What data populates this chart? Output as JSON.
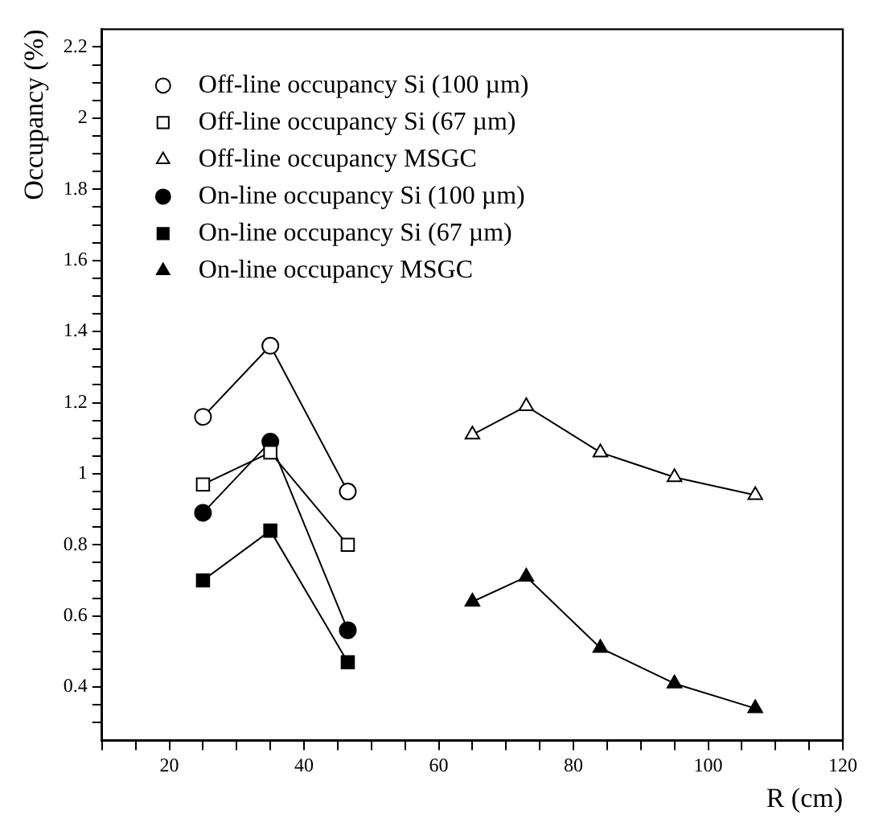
{
  "chart_data": {
    "type": "line",
    "xlabel": "R (cm)",
    "ylabel": "Occupancy (%)",
    "xlim": [
      10,
      120
    ],
    "xticks": [
      {
        "value": 10,
        "label": null
      },
      {
        "value": 15,
        "label": null
      },
      20,
      {
        "value": 25,
        "label": null
      },
      {
        "value": 30,
        "label": null
      },
      {
        "value": 35,
        "label": null
      },
      40,
      {
        "value": 45,
        "label": null
      },
      {
        "value": 50,
        "label": null
      },
      {
        "value": 55,
        "label": null
      },
      60,
      {
        "value": 65,
        "label": null
      },
      {
        "value": 70,
        "label": null
      },
      {
        "value": 75,
        "label": null
      },
      80,
      {
        "value": 85,
        "label": null
      },
      {
        "value": 90,
        "label": null
      },
      {
        "value": 95,
        "label": null
      },
      100,
      {
        "value": 105,
        "label": null
      },
      {
        "value": 110,
        "label": null
      },
      {
        "value": 115,
        "label": null
      },
      120
    ],
    "ylim": [
      0.25,
      2.25
    ],
    "yticks": [
      {
        "value": 0.3,
        "label": null
      },
      {
        "value": 0.35,
        "label": null
      },
      0.4,
      {
        "value": 0.45,
        "label": null
      },
      {
        "value": 0.5,
        "label": null
      },
      {
        "value": 0.55,
        "label": null
      },
      0.6,
      {
        "value": 0.65,
        "label": null
      },
      {
        "value": 0.7,
        "label": null
      },
      {
        "value": 0.75,
        "label": null
      },
      0.8,
      {
        "value": 0.85,
        "label": null
      },
      {
        "value": 0.9,
        "label": null
      },
      {
        "value": 0.95,
        "label": null
      },
      1,
      {
        "value": 1.05,
        "label": null
      },
      {
        "value": 1.1,
        "label": null
      },
      {
        "value": 1.15,
        "label": null
      },
      1.2,
      {
        "value": 1.25,
        "label": null
      },
      {
        "value": 1.3,
        "label": null
      },
      {
        "value": 1.35,
        "label": null
      },
      1.4,
      {
        "value": 1.45,
        "label": null
      },
      {
        "value": 1.5,
        "label": null
      },
      {
        "value": 1.55,
        "label": null
      },
      1.6,
      {
        "value": 1.65,
        "label": null
      },
      {
        "value": 1.7,
        "label": null
      },
      {
        "value": 1.75,
        "label": null
      },
      1.8,
      {
        "value": 1.85,
        "label": null
      },
      {
        "value": 1.9,
        "label": null
      },
      {
        "value": 1.95,
        "label": null
      },
      2,
      {
        "value": 2.05,
        "label": null
      },
      {
        "value": 2.1,
        "label": null
      },
      {
        "value": 2.15,
        "label": null
      },
      2.2
    ],
    "grid": false,
    "legend": "top left",
    "line_style": "solid",
    "series": [
      {
        "name": "Off-line occupancy Si (100 µm)",
        "color": "#000000",
        "marker": "circle",
        "x": [
          25,
          35,
          46.5
        ],
        "values": [
          1.16,
          1.36,
          0.95
        ]
      },
      {
        "name": "Off-line occupancy Si (67 µm)",
        "color": "#000000",
        "marker": "square",
        "x": [
          25,
          35,
          46.5
        ],
        "values": [
          0.97,
          1.06,
          0.8
        ]
      },
      {
        "name": "Off-line occupancy MSGC",
        "color": "#000000",
        "marker": "triangle",
        "x": [
          65,
          73,
          84,
          95,
          107
        ],
        "values": [
          1.11,
          1.19,
          1.06,
          0.99,
          0.94
        ]
      },
      {
        "name": "On-line occupancy Si (100 µm)",
        "color": "#000000",
        "marker": "circle",
        "x": [
          25,
          35,
          46.5
        ],
        "values": [
          0.89,
          1.09,
          0.56
        ]
      },
      {
        "name": "On-line occupancy Si (67 µm)",
        "color": "#000000",
        "marker": "square",
        "x": [
          25,
          35,
          46.5
        ],
        "values": [
          0.7,
          0.84,
          0.47
        ]
      },
      {
        "name": "On-line occupancy MSGC",
        "color": "#000000",
        "marker": "triangle",
        "x": [
          65,
          73,
          84,
          95,
          107
        ],
        "values": [
          0.64,
          0.71,
          0.51,
          0.41,
          0.34
        ]
      }
    ]
  }
}
